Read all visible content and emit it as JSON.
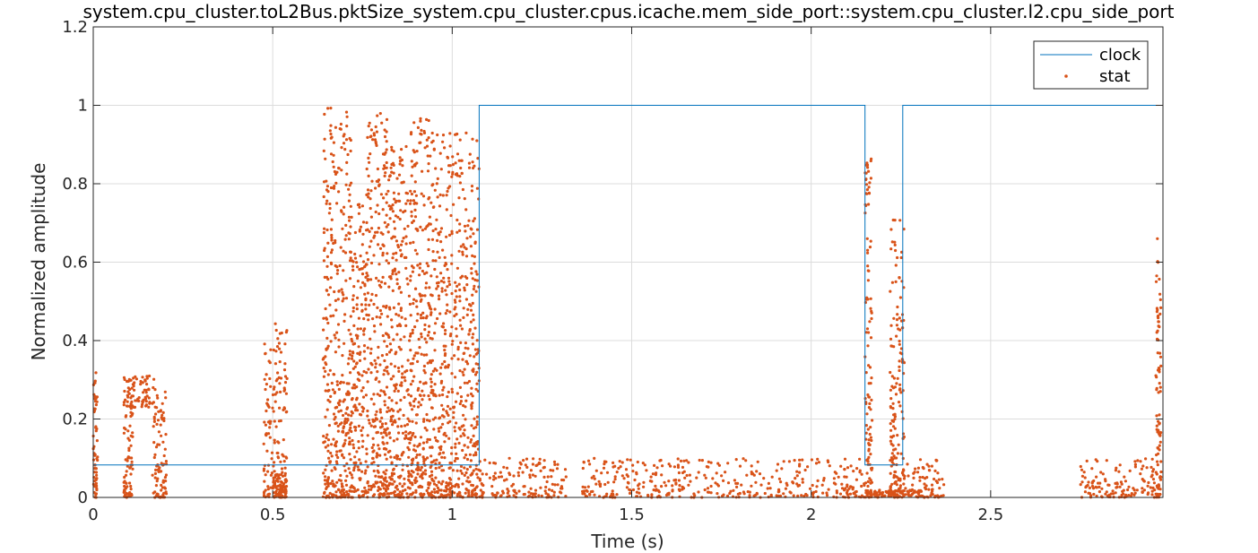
{
  "chart_data": {
    "type": "line",
    "title": "system.cpu_cluster.toL2Bus.pktSize_system.cpu_cluster.cpus.icache.mem_side_port::system.cpu_cluster.l2.cpu_side_port",
    "xlabel": "Time (s)",
    "ylabel": "Normalized amplitude",
    "xlim": [
      0,
      2.98
    ],
    "ylim": [
      0,
      1.2
    ],
    "xticks": [
      0,
      0.5,
      1,
      1.5,
      2,
      2.5
    ],
    "xtick_labels": [
      "0",
      "0.5",
      "1",
      "1.5",
      "2",
      "2.5"
    ],
    "yticks": [
      0,
      0.2,
      0.4,
      0.6,
      0.8,
      1,
      1.2
    ],
    "ytick_labels": [
      "0",
      "0.2",
      "0.4",
      "0.6",
      "0.8",
      "1",
      "1.2"
    ],
    "grid": true,
    "legend_position": "top-right",
    "series": [
      {
        "name": "clock",
        "style": "step-line",
        "color": "#0072BD",
        "x": [
          0,
          1.075,
          1.075,
          2.15,
          2.15,
          2.255,
          2.255,
          2.98
        ],
        "y": [
          0.083,
          0.083,
          1,
          1,
          0.083,
          0.083,
          1,
          1
        ]
      },
      {
        "name": "stat",
        "style": "points",
        "color": "#D95319",
        "bursts": [
          {
            "x0": 0.0,
            "x1": 0.012,
            "ymin": 0,
            "ymax": 0.32
          },
          {
            "x0": 0.085,
            "x1": 0.175,
            "ymin": 0.23,
            "ymax": 0.31
          },
          {
            "x0": 0.085,
            "x1": 0.11,
            "ymin": 0,
            "ymax": 0.31
          },
          {
            "x0": 0.165,
            "x1": 0.205,
            "ymin": 0,
            "ymax": 0.27
          },
          {
            "x0": 0.475,
            "x1": 0.54,
            "ymin": 0,
            "ymax": 0.45
          },
          {
            "x0": 0.5,
            "x1": 0.54,
            "ymin": 0,
            "ymax": 0.06
          },
          {
            "x0": 0.64,
            "x1": 0.72,
            "ymin": 0,
            "ymax": 1.0
          },
          {
            "x0": 0.72,
            "x1": 0.76,
            "ymin": 0,
            "ymax": 0.75
          },
          {
            "x0": 0.76,
            "x1": 0.82,
            "ymin": 0,
            "ymax": 0.98
          },
          {
            "x0": 0.82,
            "x1": 0.88,
            "ymin": 0,
            "ymax": 0.9
          },
          {
            "x0": 0.88,
            "x1": 0.94,
            "ymin": 0,
            "ymax": 0.97
          },
          {
            "x0": 0.94,
            "x1": 1.075,
            "ymin": 0,
            "ymax": 0.93
          },
          {
            "x0": 1.075,
            "x1": 1.32,
            "ymin": 0,
            "ymax": 0.1
          },
          {
            "x0": 1.36,
            "x1": 2.155,
            "ymin": 0,
            "ymax": 0.1
          },
          {
            "x0": 2.15,
            "x1": 2.17,
            "ymin": 0,
            "ymax": 0.87
          },
          {
            "x0": 2.17,
            "x1": 2.25,
            "ymin": 0,
            "ymax": 0.02
          },
          {
            "x0": 2.22,
            "x1": 2.26,
            "ymin": 0,
            "ymax": 0.72
          },
          {
            "x0": 2.255,
            "x1": 2.37,
            "ymin": 0,
            "ymax": 0.1
          },
          {
            "x0": 2.75,
            "x1": 2.97,
            "ymin": 0,
            "ymax": 0.1
          },
          {
            "x0": 2.96,
            "x1": 2.975,
            "ymin": 0,
            "ymax": 0.66
          }
        ]
      }
    ]
  }
}
